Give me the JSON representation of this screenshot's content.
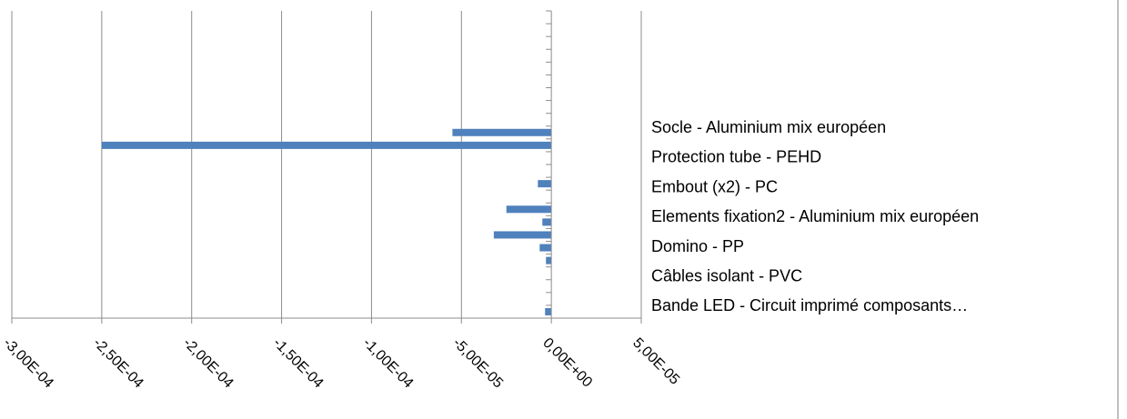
{
  "chart_data": {
    "type": "bar",
    "orientation": "horizontal",
    "xlim": [
      -0.0003,
      5e-05
    ],
    "x_ticks": [
      -0.0003,
      -0.00025,
      -0.0002,
      -0.00015,
      -0.0001,
      -5e-05,
      0,
      5e-05
    ],
    "x_tick_labels": [
      "-3,00E-04",
      "-2,50E-04",
      "-2,00E-04",
      "-1,50E-04",
      "-1,00E-04",
      "-5,00E-05",
      "0,00E+00",
      "5,00E-05"
    ],
    "grid": true,
    "legend_position": "right",
    "legend_entries": [
      "Socle - Aluminium mix européen",
      "Protection tube - PEHD",
      "Embout (x2) - PC",
      "Elements fixation2 - Aluminium mix européen",
      "Domino - PP",
      "Câbles isolant - PVC",
      "Bande LED - Circuit imprimé composants…"
    ],
    "values_top_to_bottom": [
      0,
      0,
      0,
      0,
      0,
      0,
      0,
      0,
      0,
      -5.5e-05,
      -0.00025,
      0,
      0,
      -7.5e-06,
      0,
      -2.5e-05,
      -5e-06,
      -3.2e-05,
      -6.5e-06,
      -3e-06,
      0,
      0,
      0,
      -3.5e-06
    ],
    "bar_color": "#4f81bd"
  }
}
